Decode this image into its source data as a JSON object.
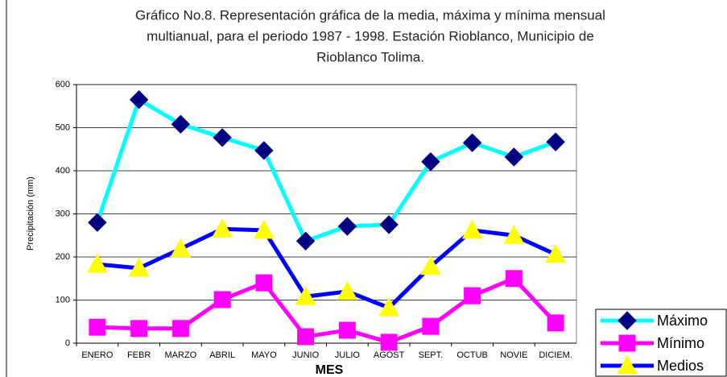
{
  "chart_data": {
    "type": "line",
    "title": [
      "Gráfico No.8. Representación gráfica de la media, máxima y mínima mensual",
      "multianual, para el periodo 1987 - 1998.  Estación Rioblanco, Municipio de",
      "Rioblanco Tolima."
    ],
    "xlabel": "MES",
    "ylabel": "Precipitación (mm)",
    "categories": [
      "ENERO",
      "FEBR",
      "MARZO",
      "ABRIL",
      "MAYO",
      "JUNIO",
      "JULIO",
      "AGOST",
      "SEPT.",
      "OCTUB",
      "NOVIE",
      "DICIEM."
    ],
    "series": [
      {
        "name": "Máximo",
        "color": "#00ffff",
        "marker": "diamond",
        "marker_color": "#000080",
        "values": [
          280,
          565,
          508,
          477,
          447,
          237,
          271,
          275,
          421,
          465,
          432,
          467
        ]
      },
      {
        "name": "Mínimo",
        "color": "#ff00ff",
        "marker": "square",
        "marker_color": "#ff00ff",
        "values": [
          37,
          34,
          34,
          101,
          140,
          15,
          30,
          2,
          39,
          110,
          150,
          47
        ]
      },
      {
        "name": "Medios",
        "color": "#0000ff",
        "marker": "triangle",
        "marker_color": "#ffff00",
        "values": [
          183,
          174,
          219,
          265,
          262,
          108,
          120,
          82,
          178,
          262,
          250,
          206
        ]
      }
    ],
    "ylim": [
      0,
      600
    ],
    "yticks": [
      0,
      100,
      200,
      300,
      400,
      500,
      600
    ],
    "grid": true,
    "legend": "lower right"
  }
}
